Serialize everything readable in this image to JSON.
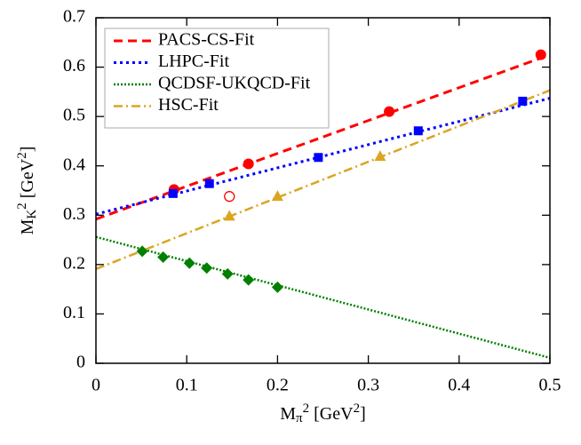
{
  "chart_data": {
    "type": "line",
    "xlabel": [
      [
        "M",
        "normal"
      ],
      [
        "π",
        "sub"
      ],
      [
        "2",
        "sup"
      ],
      [
        " [GeV",
        "normal"
      ],
      [
        "2",
        "sup"
      ],
      [
        "]",
        "normal"
      ]
    ],
    "ylabel": [
      [
        "M",
        "normal"
      ],
      [
        "K",
        "sub"
      ],
      [
        "2",
        "sup"
      ],
      [
        " [GeV",
        "normal"
      ],
      [
        "2",
        "sup"
      ],
      [
        "]",
        "normal"
      ]
    ],
    "xlim": [
      0,
      0.5
    ],
    "ylim": [
      0,
      0.7
    ],
    "xticks": [
      0,
      0.1,
      0.2,
      0.3,
      0.4,
      0.5
    ],
    "yticks": [
      0,
      0.1,
      0.2,
      0.3,
      0.4,
      0.5,
      0.6,
      0.7
    ],
    "legend": "upper left",
    "series": [
      {
        "name": "PACS-CS-Fit",
        "color": "#ff0000",
        "dash": "dashed",
        "x": [
          0,
          0.5
        ],
        "values": [
          0.292,
          0.625
        ]
      },
      {
        "name": "LHPC-Fit",
        "color": "#0000ff",
        "dash": "dotted",
        "x": [
          0,
          0.5
        ],
        "values": [
          0.302,
          0.537
        ]
      },
      {
        "name": "QCDSF-UKQCD-Fit",
        "color": "#008000",
        "dash": "fine-dotted",
        "x": [
          0,
          0.5
        ],
        "values": [
          0.256,
          0.011
        ]
      },
      {
        "name": "HSC-Fit",
        "color": "#daa520",
        "dash": "dash-dot",
        "x": [
          0,
          0.5
        ],
        "values": [
          0.191,
          0.553
        ]
      }
    ],
    "markers": [
      {
        "color": "#ff0000",
        "marker": "circle",
        "x": [
          0.086,
          0.168,
          0.323,
          0.49
        ],
        "values": [
          0.352,
          0.404,
          0.51,
          0.625
        ]
      },
      {
        "color": "#ff0000",
        "marker": "open-circle",
        "x": [
          0.147
        ],
        "values": [
          0.338
        ]
      },
      {
        "color": "#0000ff",
        "marker": "square",
        "x": [
          0.085,
          0.125,
          0.245,
          0.355,
          0.47
        ],
        "values": [
          0.344,
          0.364,
          0.417,
          0.471,
          0.531
        ]
      },
      {
        "color": "#008000",
        "marker": "diamond",
        "x": [
          0.051,
          0.074,
          0.103,
          0.122,
          0.145,
          0.168,
          0.2
        ],
        "values": [
          0.227,
          0.215,
          0.203,
          0.193,
          0.181,
          0.169,
          0.154
        ]
      },
      {
        "color": "#daa520",
        "marker": "triangle",
        "x": [
          0.147,
          0.2,
          0.313
        ],
        "values": [
          0.298,
          0.338,
          0.419
        ]
      }
    ]
  }
}
